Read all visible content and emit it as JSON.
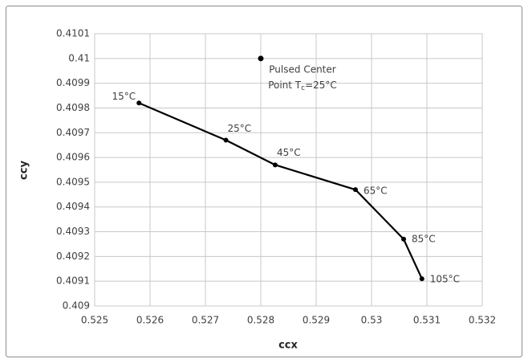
{
  "chart_data": {
    "type": "line",
    "x_label": "ccx",
    "y_label": "ccy",
    "xlim": [
      0.525,
      0.532
    ],
    "xticks": [
      0.525,
      0.526,
      0.527,
      0.528,
      0.529,
      0.53,
      0.531,
      0.532
    ],
    "ylim": [
      0.409,
      0.4101
    ],
    "yticks": [
      0.409,
      0.4091,
      0.4092,
      0.4093,
      0.4094,
      0.4095,
      0.4096,
      0.4097,
      0.4098,
      0.4099,
      0.41,
      0.4101
    ],
    "grid": true,
    "series": [
      {
        "color": "#000000",
        "x": [
          0.5258,
          0.52737,
          0.52826,
          0.52971,
          0.53058,
          0.53091
        ],
        "values": [
          0.40982,
          0.40967,
          0.40957,
          0.40947,
          0.40927,
          0.40911
        ],
        "point_labels": [
          "15°C",
          "25°C",
          "45°C",
          "65°C",
          "85°C",
          "105°C"
        ]
      }
    ],
    "annotation_point": {
      "x": 0.528,
      "y": 0.41,
      "color": "#000000",
      "text": [
        "Pulsed Center",
        "Point T"
      ],
      "subscript": "c",
      "suffix": "=25°C"
    }
  }
}
